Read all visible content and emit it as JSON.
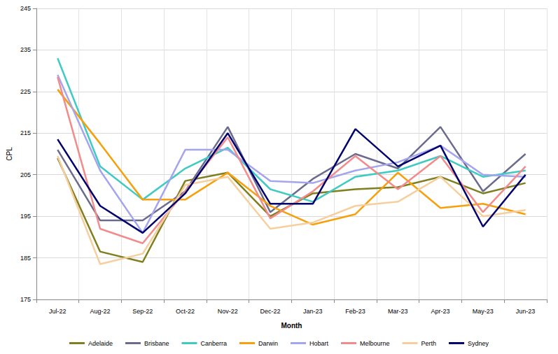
{
  "chart_data": {
    "type": "line",
    "x_label": "Month",
    "y_label": "CPL",
    "categories": [
      "Jul-22",
      "Aug-22",
      "Sep-22",
      "Oct-22",
      "Nov-22",
      "Dec-22",
      "Jan-23",
      "Feb-23",
      "Mar-23",
      "Apr-23",
      "May-23",
      "Jun-23"
    ],
    "series": [
      {
        "name": "Adelaide",
        "color": "#7f7f1e",
        "values": [
          209,
          186.5,
          184,
          203.5,
          205.5,
          195,
          200.5,
          201.5,
          202,
          204.5,
          200.5,
          203
        ]
      },
      {
        "name": "Brisbane",
        "color": "#6b6b8e",
        "values": [
          211,
          194,
          194,
          201,
          216.5,
          196,
          204,
          210,
          206.5,
          216.5,
          201,
          210
        ]
      },
      {
        "name": "Canberra",
        "color": "#3fcbc3",
        "values": [
          233,
          207,
          199,
          206.5,
          211.5,
          201.5,
          198.5,
          204.5,
          206,
          209.5,
          204.5,
          206
        ]
      },
      {
        "name": "Darwin",
        "color": "#f5a00c",
        "values": [
          225.5,
          212.5,
          199,
          199,
          205.5,
          197.5,
          193,
          195.5,
          205.5,
          197,
          198,
          195.5
        ]
      },
      {
        "name": "Hobart",
        "color": "#a4a4ef",
        "values": [
          229,
          206,
          191,
          211,
          211,
          203.5,
          203,
          206,
          208,
          212,
          205,
          204.5
        ]
      },
      {
        "name": "Melbourne",
        "color": "#f28b8b",
        "values": [
          228.5,
          192,
          188.5,
          201,
          214,
          194.5,
          201,
          209.5,
          201.5,
          209.5,
          196,
          207
        ]
      },
      {
        "name": "Perth",
        "color": "#f7cf9f",
        "values": [
          209.5,
          183.5,
          186,
          202.5,
          204.5,
          192,
          193.5,
          197.5,
          198.5,
          204.5,
          195,
          196.5
        ]
      },
      {
        "name": "Sydney",
        "color": "#00006e",
        "values": [
          213.5,
          197.5,
          191,
          200.5,
          215,
          198,
          198,
          216,
          207,
          212,
          192.5,
          205
        ]
      }
    ],
    "ylim": [
      175,
      245
    ],
    "yticks": [
      175,
      185,
      195,
      205,
      215,
      225,
      235,
      245
    ],
    "grid": true,
    "legend": "bottom"
  }
}
